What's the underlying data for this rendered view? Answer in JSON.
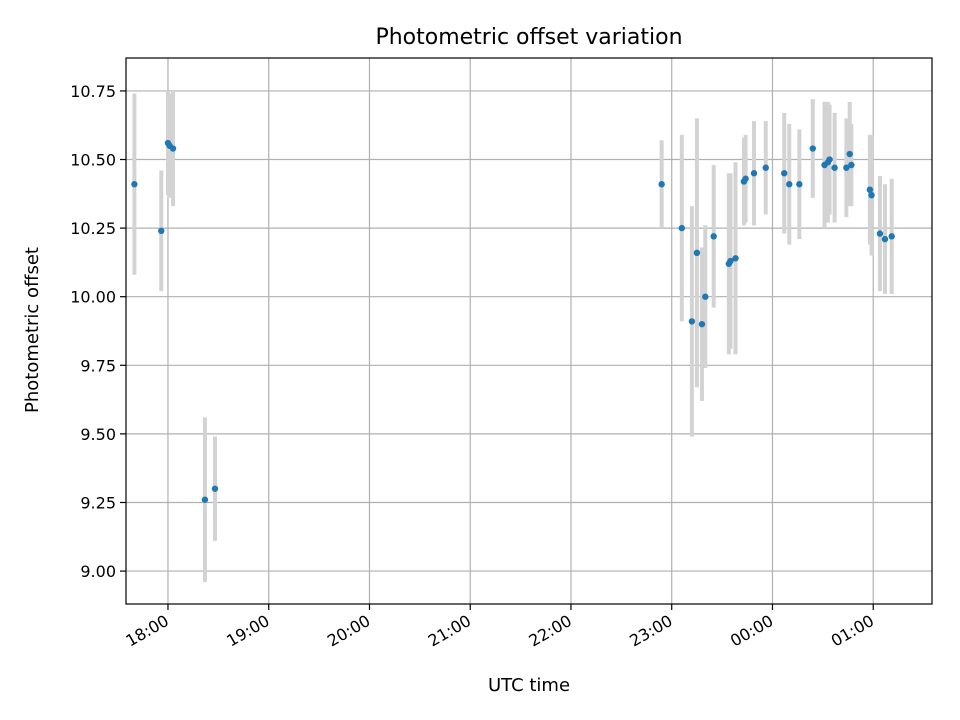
{
  "chart_data": {
    "type": "scatter",
    "title": "Photometric offset variation",
    "xlabel": "UTC time",
    "ylabel": "Photometric offset",
    "x_tick_labels": [
      "18:00",
      "19:00",
      "20:00",
      "21:00",
      "22:00",
      "23:00",
      "00:00",
      "01:00"
    ],
    "y_tick_labels": [
      "9.00",
      "9.25",
      "9.50",
      "9.75",
      "10.00",
      "10.25",
      "10.50",
      "10.75"
    ],
    "xlim": [
      "17:35",
      "01:35"
    ],
    "ylim": [
      8.88,
      10.87
    ],
    "grid": true,
    "colors": {
      "point": "#1f77b4",
      "errorbar": "#d3d3d3",
      "grid": "#b0b0b0"
    },
    "series": [
      {
        "points": [
          {
            "x": "17:40",
            "y": 10.41,
            "err": 0.33
          },
          {
            "x": "17:56",
            "y": 10.24,
            "err": 0.22
          },
          {
            "x": "18:00",
            "y": 10.56,
            "err": 0.19
          },
          {
            "x": "18:01",
            "y": 10.55,
            "err": 0.19
          },
          {
            "x": "18:03",
            "y": 10.54,
            "err": 0.21
          },
          {
            "x": "18:22",
            "y": 9.26,
            "err": 0.3
          },
          {
            "x": "18:28",
            "y": 9.3,
            "err": 0.19
          },
          {
            "x": "22:54",
            "y": 10.41,
            "err": 0.16
          },
          {
            "x": "23:06",
            "y": 10.25,
            "err": 0.34
          },
          {
            "x": "23:12",
            "y": 9.91,
            "err": 0.42
          },
          {
            "x": "23:15",
            "y": 10.16,
            "err": 0.49
          },
          {
            "x": "23:18",
            "y": 9.9,
            "err": 0.28
          },
          {
            "x": "23:20",
            "y": 10.0,
            "err": 0.26
          },
          {
            "x": "23:25",
            "y": 10.22,
            "err": 0.26
          },
          {
            "x": "23:34",
            "y": 10.12,
            "err": 0.33
          },
          {
            "x": "23:35",
            "y": 10.13,
            "err": 0.32
          },
          {
            "x": "23:38",
            "y": 10.14,
            "err": 0.35
          },
          {
            "x": "23:43",
            "y": 10.42,
            "err": 0.16
          },
          {
            "x": "23:44",
            "y": 10.43,
            "err": 0.16
          },
          {
            "x": "23:49",
            "y": 10.45,
            "err": 0.19
          },
          {
            "x": "23:56",
            "y": 10.47,
            "err": 0.17
          },
          {
            "x": "00:07",
            "y": 10.45,
            "err": 0.22
          },
          {
            "x": "00:10",
            "y": 10.41,
            "err": 0.22
          },
          {
            "x": "00:16",
            "y": 10.41,
            "err": 0.2
          },
          {
            "x": "00:24",
            "y": 10.54,
            "err": 0.18
          },
          {
            "x": "00:31",
            "y": 10.48,
            "err": 0.23
          },
          {
            "x": "00:33",
            "y": 10.49,
            "err": 0.22
          },
          {
            "x": "00:34",
            "y": 10.5,
            "err": 0.2
          },
          {
            "x": "00:37",
            "y": 10.47,
            "err": 0.2
          },
          {
            "x": "00:44",
            "y": 10.47,
            "err": 0.18
          },
          {
            "x": "00:46",
            "y": 10.52,
            "err": 0.19
          },
          {
            "x": "00:47",
            "y": 10.48,
            "err": 0.15
          },
          {
            "x": "00:58",
            "y": 10.39,
            "err": 0.2
          },
          {
            "x": "00:59",
            "y": 10.37,
            "err": 0.22
          },
          {
            "x": "01:04",
            "y": 10.23,
            "err": 0.21
          },
          {
            "x": "01:07",
            "y": 10.21,
            "err": 0.2
          },
          {
            "x": "01:11",
            "y": 10.22,
            "err": 0.21
          }
        ]
      }
    ]
  }
}
